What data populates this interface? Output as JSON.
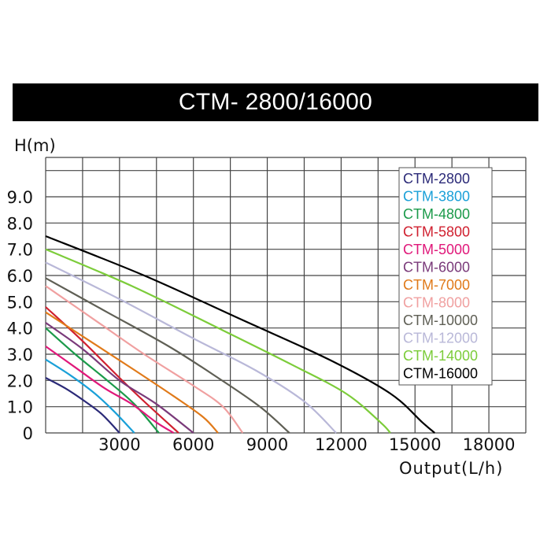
{
  "chart_data": {
    "type": "line",
    "title": "CTM- 2800/16000",
    "xlabel": "Output(L/h)",
    "ylabel": "H(m)",
    "xlim": [
      0,
      19500
    ],
    "ylim": [
      0,
      10.5
    ],
    "x_ticks": [
      "3000",
      "6000",
      "9000",
      "12000",
      "15000",
      "18000"
    ],
    "y_ticks": [
      "0",
      "1.0",
      "2.0",
      "3.0",
      "4.0",
      "5.0",
      "6.0",
      "7.0",
      "8.0",
      "9.0"
    ],
    "grid": true,
    "legend_position": "top-right",
    "series": [
      {
        "name": "CTM-2800",
        "color": "#2b2a78",
        "points": [
          [
            0,
            2.1
          ],
          [
            800,
            1.7
          ],
          [
            1600,
            1.2
          ],
          [
            2300,
            0.7
          ],
          [
            3000,
            0
          ]
        ]
      },
      {
        "name": "CTM-3800",
        "color": "#1aa0d8",
        "points": [
          [
            0,
            2.8
          ],
          [
            1000,
            2.2
          ],
          [
            2000,
            1.5
          ],
          [
            2800,
            0.8
          ],
          [
            3600,
            0
          ]
        ]
      },
      {
        "name": "CTM-4800",
        "color": "#1b9a4a",
        "points": [
          [
            0,
            4.0
          ],
          [
            1200,
            3.0
          ],
          [
            2500,
            2.0
          ],
          [
            3600,
            1.1
          ],
          [
            4600,
            0
          ]
        ]
      },
      {
        "name": "CTM-5800",
        "color": "#d0202f",
        "points": [
          [
            0,
            4.8
          ],
          [
            1500,
            3.5
          ],
          [
            3000,
            2.1
          ],
          [
            4000,
            1.2
          ],
          [
            5400,
            0
          ]
        ]
      },
      {
        "name": "CTM-5000",
        "color": "#e0187a",
        "points": [
          [
            0,
            3.3
          ],
          [
            1200,
            2.5
          ],
          [
            2400,
            1.7
          ],
          [
            3500,
            1.1
          ],
          [
            4500,
            0.4
          ],
          [
            5200,
            0
          ]
        ]
      },
      {
        "name": "CTM-6000",
        "color": "#7a3a7a",
        "points": [
          [
            0,
            4.2
          ],
          [
            1500,
            3.2
          ],
          [
            3000,
            2.0
          ],
          [
            4500,
            1.1
          ],
          [
            6000,
            0
          ]
        ]
      },
      {
        "name": "CTM-7000",
        "color": "#e07a1a",
        "points": [
          [
            0,
            4.6
          ],
          [
            1800,
            3.5
          ],
          [
            3600,
            2.4
          ],
          [
            5200,
            1.4
          ],
          [
            6400,
            0.6
          ],
          [
            7000,
            0
          ]
        ]
      },
      {
        "name": "CTM-8000",
        "color": "#f0a0a0",
        "points": [
          [
            0,
            5.6
          ],
          [
            2000,
            4.3
          ],
          [
            4000,
            3.0
          ],
          [
            6000,
            1.8
          ],
          [
            7200,
            1.0
          ],
          [
            8000,
            0
          ]
        ]
      },
      {
        "name": "CTM-10000",
        "color": "#5f5f55",
        "points": [
          [
            0,
            5.9
          ],
          [
            2500,
            4.6
          ],
          [
            5000,
            3.3
          ],
          [
            7000,
            2.1
          ],
          [
            8700,
            1.0
          ],
          [
            9900,
            0
          ]
        ]
      },
      {
        "name": "CTM-12000",
        "color": "#b9b8d8",
        "points": [
          [
            0,
            6.5
          ],
          [
            3000,
            5.1
          ],
          [
            6000,
            3.6
          ],
          [
            8500,
            2.4
          ],
          [
            10500,
            1.2
          ],
          [
            11800,
            0
          ]
        ]
      },
      {
        "name": "CTM-14000",
        "color": "#7ccc3a",
        "points": [
          [
            0,
            7.0
          ],
          [
            3500,
            5.6
          ],
          [
            7000,
            4.0
          ],
          [
            10000,
            2.6
          ],
          [
            12200,
            1.5
          ],
          [
            13600,
            0.4
          ],
          [
            14000,
            0
          ]
        ]
      },
      {
        "name": "CTM-16000",
        "color": "#000000",
        "points": [
          [
            0,
            7.5
          ],
          [
            4000,
            6.0
          ],
          [
            8000,
            4.3
          ],
          [
            11500,
            2.8
          ],
          [
            14000,
            1.5
          ],
          [
            15300,
            0.4
          ],
          [
            15800,
            0
          ]
        ]
      }
    ]
  }
}
